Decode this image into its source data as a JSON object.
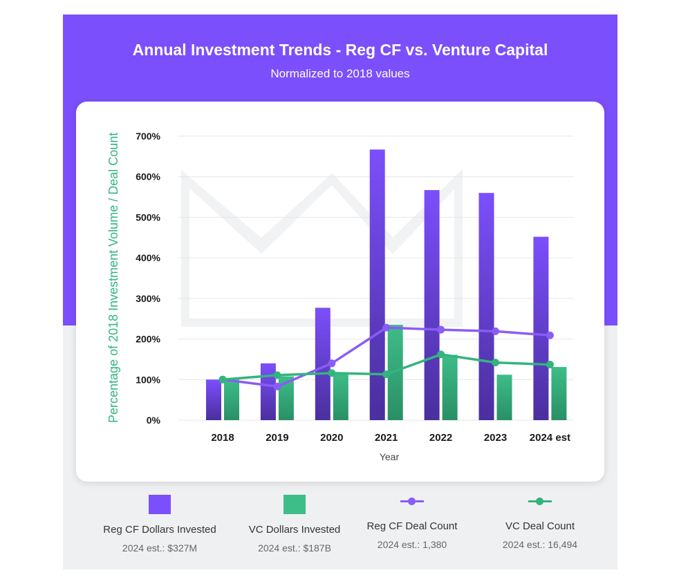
{
  "header": {
    "title": "Annual Investment Trends - Reg CF vs. Venture Capital",
    "subtitle": "Normalized to 2018 values"
  },
  "colors": {
    "header_bg": "#7b4ffb",
    "regcf_bar_top": "#7b4ffb",
    "regcf_bar_bottom": "#4a2f9e",
    "vc_bar_top": "#3dbd88",
    "vc_bar_bottom": "#2a8f66",
    "regcf_line": "#8a5cf6",
    "vc_line": "#33b47d"
  },
  "chart_data": {
    "type": "bar",
    "categories": [
      "2018",
      "2019",
      "2020",
      "2021",
      "2022",
      "2023",
      "2024 est"
    ],
    "series": [
      {
        "name": "Reg CF Dollars Invested",
        "kind": "bar",
        "values": [
          100,
          140,
          277,
          667,
          567,
          560,
          452
        ]
      },
      {
        "name": "VC Dollars Invested",
        "kind": "bar",
        "values": [
          100,
          108,
          117,
          235,
          161,
          112,
          131
        ]
      },
      {
        "name": "Reg CF Deal Count",
        "kind": "line",
        "values": [
          100,
          83,
          140,
          228,
          223,
          219,
          209
        ]
      },
      {
        "name": "VC Deal Count",
        "kind": "line",
        "values": [
          100,
          111,
          116,
          113,
          162,
          142,
          137
        ]
      }
    ],
    "title": "Annual Investment Trends - Reg CF vs. Venture Capital",
    "xlabel": "Year",
    "ylabel": "Percentage of 2018 Investment Volume / Deal Count",
    "ylim": [
      0,
      700
    ],
    "yticks": [
      0,
      100,
      200,
      300,
      400,
      500,
      600,
      700
    ],
    "ytick_labels": [
      "0%",
      "100%",
      "200%",
      "300%",
      "400%",
      "500%",
      "600%",
      "700%"
    ],
    "grid": true
  },
  "legend": [
    {
      "label": "Reg CF Dollars Invested",
      "est": "2024 est.:  $327M",
      "icon": "square"
    },
    {
      "label": "VC Dollars Invested",
      "est": "2024 est.:  $187B",
      "icon": "square"
    },
    {
      "label": "Reg CF Deal Count",
      "est": "2024 est.:  1,380",
      "icon": "line-dot"
    },
    {
      "label": "VC Deal Count",
      "est": "2024 est.:  16,494",
      "icon": "line-dot"
    }
  ]
}
